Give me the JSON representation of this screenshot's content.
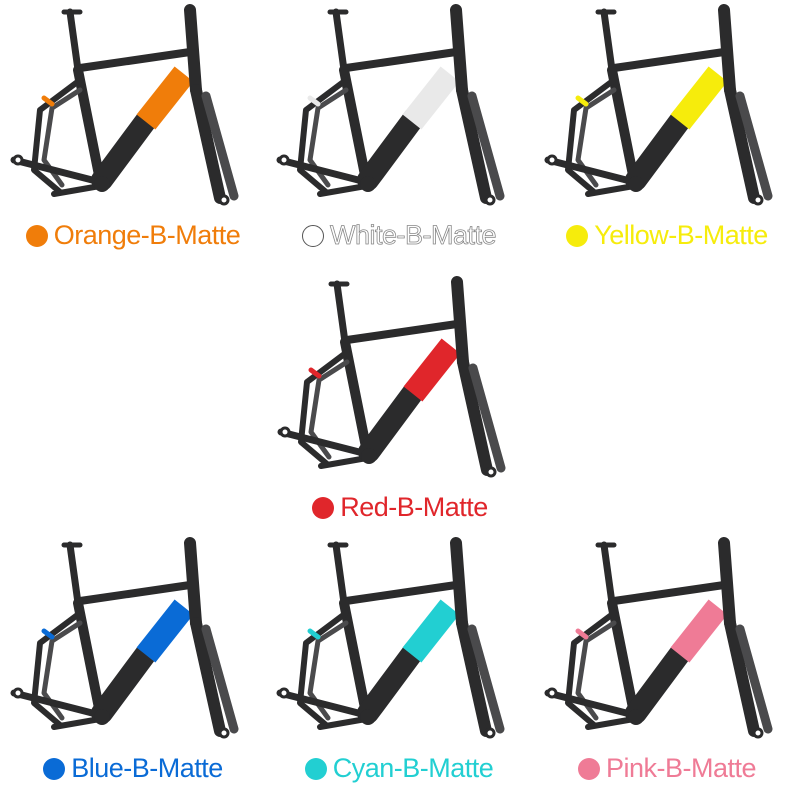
{
  "variants": [
    {
      "label": "Orange-B-Matte",
      "color": "#f07d0a"
    },
    {
      "label": "White-B-Matte",
      "color": "#e9e9e9"
    },
    {
      "label": "Yellow-B-Matte",
      "color": "#f6ec0c"
    },
    {
      "label": "Red-B-Matte",
      "color": "#e0262b"
    },
    {
      "label": "Blue-B-Matte",
      "color": "#0a6bd6"
    },
    {
      "label": "Cyan-B-Matte",
      "color": "#22cfd2"
    },
    {
      "label": "Pink-B-Matte",
      "color": "#ef7b96"
    }
  ],
  "frame_color": "#2b2b2c",
  "frame_shade": "#4a4a4c"
}
